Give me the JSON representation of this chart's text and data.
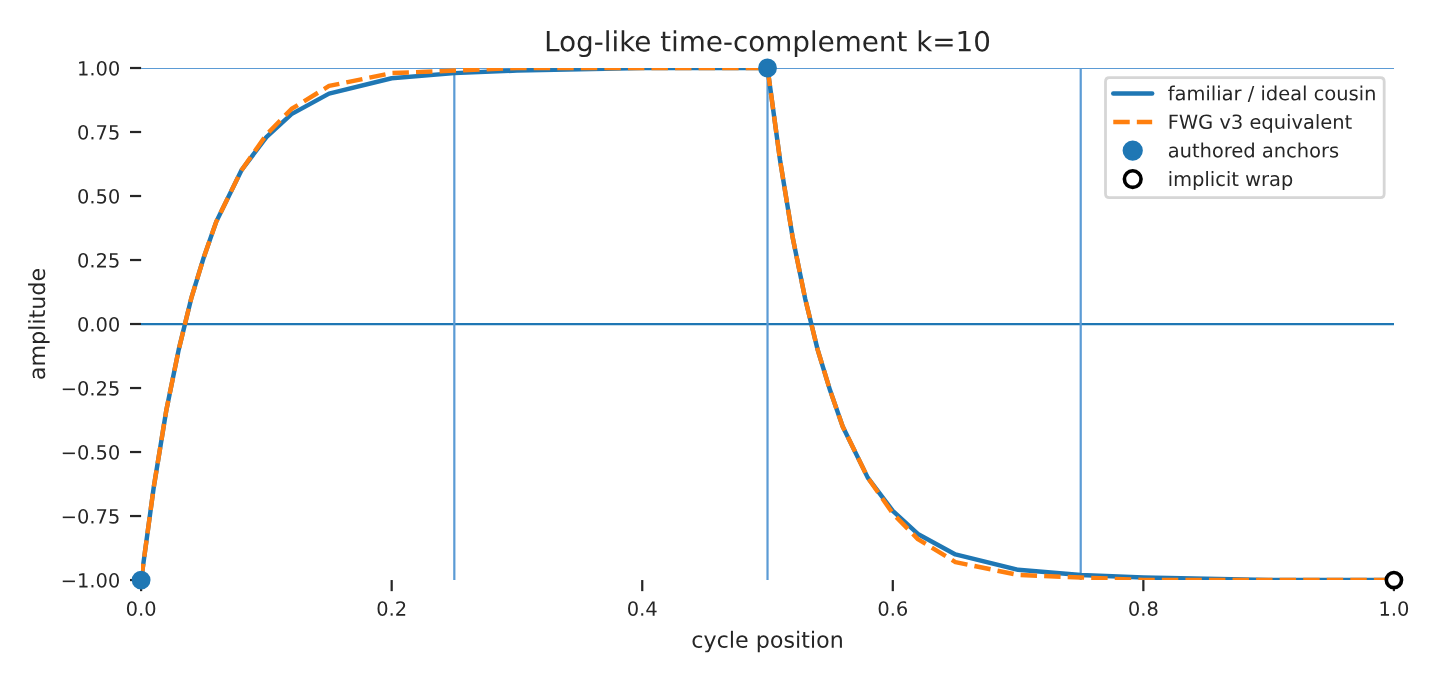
{
  "chart_data": {
    "type": "line",
    "title": "Log-like time-complement k=10",
    "xlabel": "cycle position",
    "ylabel": "amplitude",
    "xlim": [
      0,
      1
    ],
    "ylim": [
      -1,
      1
    ],
    "xticks": [
      {
        "value": 0,
        "label": "0.0"
      },
      {
        "value": 0.2,
        "label": "0.2"
      },
      {
        "value": 0.4,
        "label": "0.4"
      },
      {
        "value": 0.6,
        "label": "0.6"
      },
      {
        "value": 0.8,
        "label": "0.8"
      },
      {
        "value": 1,
        "label": "1.0"
      }
    ],
    "yticks": [
      {
        "value": -1,
        "label": "−1.00"
      },
      {
        "value": -0.75,
        "label": "−0.75"
      },
      {
        "value": -0.5,
        "label": "−0.50"
      },
      {
        "value": -0.25,
        "label": "−0.25"
      },
      {
        "value": 0,
        "label": "0.00"
      },
      {
        "value": 0.25,
        "label": "0.25"
      },
      {
        "value": 0.5,
        "label": "0.50"
      },
      {
        "value": 0.75,
        "label": "0.75"
      },
      {
        "value": 1,
        "label": "1.00"
      }
    ],
    "grid": false,
    "legend": "top right",
    "series": [
      {
        "name": "familiar / ideal cousin",
        "color": "#1f77b4",
        "line_style": "solid",
        "marker": "none",
        "x": [
          0,
          0.01,
          0.02,
          0.03,
          0.04,
          0.05,
          0.06,
          0.08,
          0.1,
          0.12,
          0.15,
          0.2,
          0.25,
          0.3,
          0.4,
          0.5,
          0.51,
          0.52,
          0.53,
          0.54,
          0.55,
          0.56,
          0.58,
          0.6,
          0.62,
          0.65,
          0.7,
          0.75,
          0.8,
          0.9,
          1
        ],
        "values": [
          -1,
          -0.64,
          -0.34,
          -0.1,
          0.1,
          0.26,
          0.4,
          0.6,
          0.73,
          0.82,
          0.9,
          0.96,
          0.98,
          0.99,
          1,
          1,
          0.64,
          0.34,
          0.1,
          -0.1,
          -0.26,
          -0.4,
          -0.6,
          -0.73,
          -0.82,
          -0.9,
          -0.96,
          -0.98,
          -0.99,
          -1,
          -1
        ]
      },
      {
        "name": "FWG v3 equivalent",
        "color": "#ff7f0e",
        "line_style": "dashed",
        "marker": "none",
        "x": [
          0,
          0.01,
          0.02,
          0.03,
          0.04,
          0.05,
          0.06,
          0.08,
          0.1,
          0.12,
          0.15,
          0.2,
          0.25,
          0.3,
          0.4,
          0.5,
          0.51,
          0.52,
          0.53,
          0.54,
          0.55,
          0.56,
          0.58,
          0.6,
          0.62,
          0.65,
          0.7,
          0.75,
          0.8,
          0.9,
          1
        ],
        "values": [
          -1,
          -0.64,
          -0.34,
          -0.1,
          0.1,
          0.26,
          0.4,
          0.6,
          0.74,
          0.84,
          0.93,
          0.98,
          0.99,
          1,
          1,
          1,
          0.64,
          0.34,
          0.1,
          -0.1,
          -0.26,
          -0.4,
          -0.6,
          -0.74,
          -0.84,
          -0.93,
          -0.98,
          -0.99,
          -1,
          -1,
          -1
        ]
      },
      {
        "name": "authored anchors",
        "type": "scatter",
        "color": "#1f77b4",
        "marker": "circle",
        "x": [
          0,
          0.5
        ],
        "values": [
          -1,
          1
        ]
      },
      {
        "name": "implicit wrap",
        "type": "scatter",
        "color": "#ffffff",
        "marker": "circle",
        "x": [
          1
        ],
        "values": [
          -1
        ]
      }
    ],
    "ref_lines": [
      {
        "axis": "y",
        "value": 1,
        "color": "#5b9bd5"
      },
      {
        "axis": "y",
        "value": 0,
        "color": "#1f77b4"
      },
      {
        "axis": "x",
        "value": 0.25,
        "color": "#5b9bd5"
      },
      {
        "axis": "x",
        "value": 0.5,
        "color": "#5b9bd5"
      },
      {
        "axis": "x",
        "value": 0.75,
        "color": "#5b9bd5"
      }
    ]
  }
}
